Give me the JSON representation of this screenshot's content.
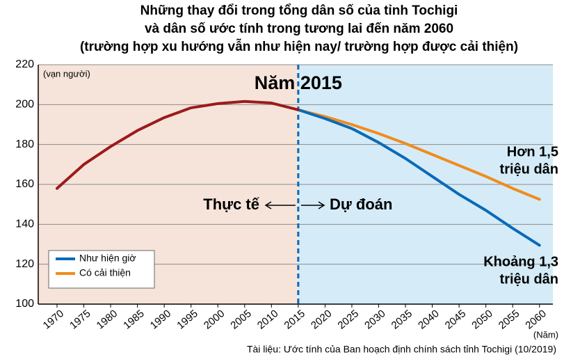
{
  "chart_data": {
    "type": "line",
    "title": [
      "Những thay đổi trong tổng dân số của tỉnh Tochigi",
      "và dân số ước tính trong tương lai đến năm 2060",
      "(trường hợp xu hướng vẫn như hiện nay/ trường hợp được cải thiện)"
    ],
    "y_unit_label": "(vạn người)",
    "x_unit_label": "(Năm)",
    "source": "Tài liệu: Ước tính của Ban hoạch định chính sách tỉnh Tochigi (10/2019)",
    "divider_x": 2015,
    "annotations": {
      "year": "Năm 2015",
      "forecast": "Dự đoán",
      "improved_note": [
        "Hơn 1,5",
        "triệu dân"
      ],
      "current_note": [
        "Khoảng 1,3",
        "triệu dân"
      ]
    },
    "x": [
      1970,
      1975,
      1980,
      1985,
      1990,
      1995,
      2000,
      2005,
      2010,
      2015,
      2020,
      2025,
      2030,
      2035,
      2040,
      2045,
      2050,
      2055,
      2060
    ],
    "series": [
      {
        "name": "Thực tế",
        "color": "#9b1b1b",
        "legend": false,
        "values": [
          158,
          170,
          179,
          187,
          193.5,
          198.4,
          200.5,
          201.6,
          200.8,
          197.4,
          null,
          null,
          null,
          null,
          null,
          null,
          null,
          null,
          null
        ]
      },
      {
        "name": "Như hiện giờ",
        "color": "#0a6ab8",
        "legend": true,
        "values": [
          null,
          null,
          null,
          null,
          null,
          null,
          null,
          null,
          null,
          197.4,
          193,
          188,
          181,
          173,
          164,
          155,
          147,
          138,
          129.5
        ]
      },
      {
        "name": "Có cải thiện",
        "color": "#f08c1e",
        "legend": true,
        "values": [
          null,
          null,
          null,
          null,
          null,
          null,
          null,
          null,
          null,
          197.4,
          194,
          190,
          185.5,
          180.5,
          175,
          169.5,
          164,
          158,
          152.5
        ]
      }
    ],
    "xlim": [
      1966.5,
      2062.5
    ],
    "ylim": [
      100,
      220
    ],
    "xticks": [
      1970,
      1975,
      1980,
      1985,
      1990,
      1995,
      2000,
      2005,
      2010,
      2015,
      2020,
      2025,
      2030,
      2035,
      2040,
      2045,
      2050,
      2055,
      2060
    ],
    "yticks": [
      100,
      120,
      140,
      160,
      180,
      200,
      220
    ],
    "grid": true,
    "region_colors": [
      "#f6e4da",
      "#d5ecf8"
    ]
  }
}
